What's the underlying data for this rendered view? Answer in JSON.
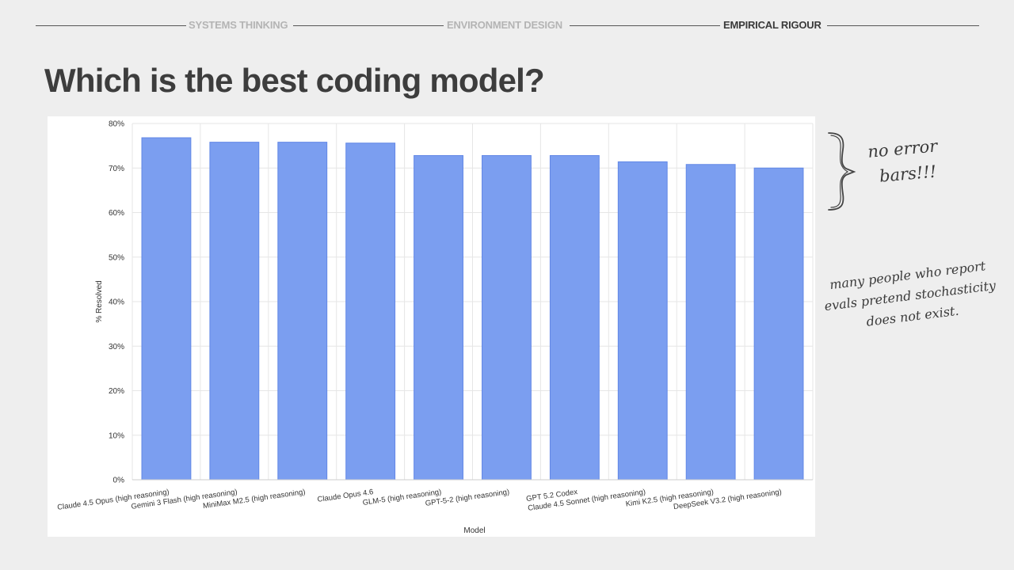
{
  "nav": {
    "items": [
      {
        "label": "SYSTEMS THINKING",
        "active": false
      },
      {
        "label": "ENVIRONMENT DESIGN",
        "active": false
      },
      {
        "label": "EMPIRICAL RIGOUR",
        "active": true
      }
    ]
  },
  "page": {
    "title": "Which is the best coding model?"
  },
  "annotations": {
    "error_bars_line1": "no error",
    "error_bars_line2": "bars!!!",
    "stochasticity_line1": "many people who report",
    "stochasticity_line2": "evals pretend stochasticity",
    "stochasticity_line3": "does not exist."
  },
  "colors": {
    "bar_fill": "#7b9ef0",
    "bar_stroke": "#6287e6",
    "grid": "#e6e6e6",
    "background": "#eeeeee"
  },
  "chart_data": {
    "type": "bar",
    "title": "",
    "xlabel": "Model",
    "ylabel": "% Resolved",
    "ylim": [
      0,
      80
    ],
    "yticks": [
      0,
      10,
      20,
      30,
      40,
      50,
      60,
      70,
      80
    ],
    "ytick_labels": [
      "0%",
      "10%",
      "20%",
      "30%",
      "40%",
      "50%",
      "60%",
      "70%",
      "80%"
    ],
    "grid": true,
    "categories": [
      "Claude 4.5 Opus (high reasoning)",
      "Gemini 3 Flash (high reasoning)",
      "MiniMax M2.5 (high reasoning)",
      "Claude Opus 4.6",
      "GLM-5 (high reasoning)",
      "GPT-5-2 (high reasoning)",
      "GPT 5.2 Codex",
      "Claude 4.5 Sonnet (high reasoning)",
      "Kimi K2.5 (high reasoning)",
      "DeepSeek V3.2 (high reasoning)"
    ],
    "values": [
      76.8,
      75.8,
      75.8,
      75.6,
      72.8,
      72.8,
      72.8,
      71.4,
      70.8,
      70.0
    ]
  }
}
